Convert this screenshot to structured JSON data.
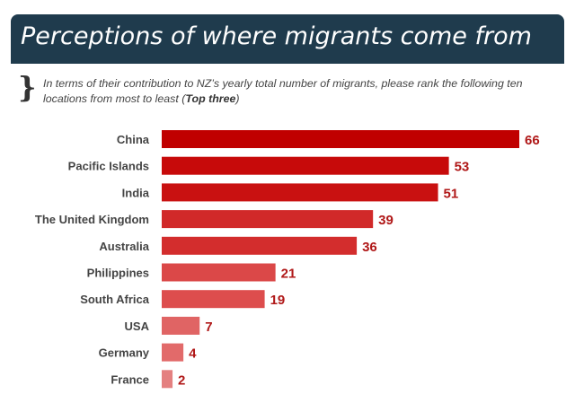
{
  "header": {
    "title": "Perceptions of where migrants come from",
    "question_main": "In terms of their contribution to NZ’s yearly total number of migrants, please rank the following ten locations from most to least (",
    "question_bold": "Top three",
    "question_end": ")"
  },
  "chart_data": {
    "type": "bar",
    "orientation": "horizontal",
    "categories": [
      "China",
      "Pacific Islands",
      "India",
      "The United Kingdom",
      "Australia",
      "Philippines",
      "South Africa",
      "USA",
      "Germany",
      "France"
    ],
    "values": [
      66,
      53,
      51,
      39,
      36,
      21,
      19,
      7,
      4,
      2
    ],
    "data_labels": [
      "66",
      "53",
      "51",
      "39",
      "36",
      "21",
      "19",
      "7",
      "4",
      "2"
    ],
    "title": "Perceptions of where migrants come from",
    "xlabel": "",
    "ylabel": "",
    "xlim": [
      0,
      66
    ],
    "grid": false,
    "legend": "none",
    "colors": [
      "#c00000",
      "#c70a0a",
      "#c91111",
      "#d12929",
      "#d32d2d",
      "#db4848",
      "#dd4d4d",
      "#e06464",
      "#e26a6a",
      "#e48080"
    ],
    "label_color": "#b01818"
  }
}
